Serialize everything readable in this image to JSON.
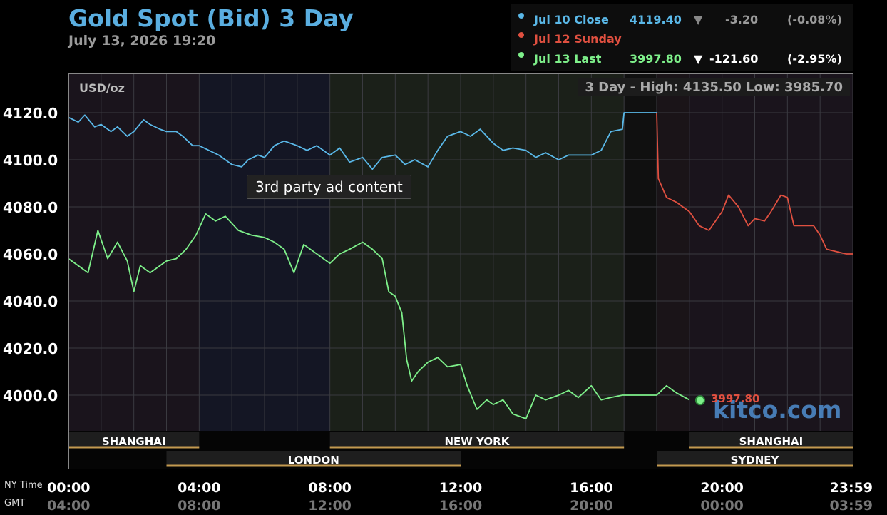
{
  "header": {
    "title": "Gold Spot (Bid) 3 Day",
    "datetime": "July 13, 2026 19:20"
  },
  "legend": [
    {
      "label": "Jul 10 Close",
      "value": "4119.40",
      "arrow": "▼",
      "change": "-3.20",
      "pct": "(-0.08%)",
      "color": "#5ab8e8",
      "value_color": "#5ab8e8",
      "change_color": "#9a9a9a"
    },
    {
      "label": "Jul 12 Sunday",
      "value": "",
      "arrow": "",
      "change": "",
      "pct": "",
      "color": "#e05040",
      "value_color": "#e05040",
      "change_color": "#e05040"
    },
    {
      "label": "Jul 13 Last",
      "value": "3997.80",
      "arrow": "▼",
      "change": "-121.60",
      "pct": "(-2.95%)",
      "color": "#7ef08a",
      "value_color": "#7ef08a",
      "change_color": "#ffffff"
    }
  ],
  "units": "USD/oz",
  "high_low": "3 Day - High: 4135.50  Low: 3985.70",
  "ad_label": "3rd party ad content",
  "last_price_label": "3997.80",
  "watermark": "kitco.com",
  "tz_labels": {
    "ny": "NY Time",
    "gmt": "GMT"
  },
  "chart_data": {
    "type": "line",
    "x_unit": "hours (NY Time)",
    "ylim": [
      3985,
      4135
    ],
    "y_ticks": [
      4120.0,
      4100.0,
      4080.0,
      4060.0,
      4040.0,
      4020.0,
      4000.0
    ],
    "y_tick_labels": [
      "4120.0",
      "4100.0",
      "4080.0",
      "4060.0",
      "4040.0",
      "4020.0",
      "4000.0"
    ],
    "x_ticks_ny": [
      "00:00",
      "04:00",
      "08:00",
      "12:00",
      "16:00",
      "20:00",
      "23:59"
    ],
    "x_ticks_gmt": [
      "04:00",
      "08:00",
      "12:00",
      "16:00",
      "20:00",
      "00:00",
      "03:59"
    ],
    "x_tick_hours": [
      0,
      4,
      8,
      12,
      16,
      20,
      24
    ],
    "grid": true,
    "sessions_top": [
      {
        "name": "SHANGHAI",
        "start": 0,
        "end": 4
      },
      {
        "name": "NEW YORK",
        "start": 8,
        "end": 17
      },
      {
        "name": "SHANGHAI",
        "start": 19,
        "end": 24
      }
    ],
    "sessions_bottom": [
      {
        "name": "LONDON",
        "start": 3,
        "end": 12
      },
      {
        "name": "SYDNEY",
        "start": 18,
        "end": 24
      }
    ],
    "series": [
      {
        "name": "Jul 10 Close",
        "color": "#5ab8e8",
        "x": [
          0,
          0.3,
          0.5,
          0.8,
          1,
          1.3,
          1.5,
          1.8,
          2,
          2.3,
          2.5,
          2.8,
          3,
          3.3,
          3.5,
          3.8,
          4,
          4.3,
          4.6,
          5,
          5.3,
          5.5,
          5.8,
          6,
          6.3,
          6.6,
          7,
          7.3,
          7.6,
          8,
          8.3,
          8.6,
          9,
          9.3,
          9.6,
          10,
          10.3,
          10.6,
          11,
          11.3,
          11.6,
          12,
          12.3,
          12.6,
          13,
          13.3,
          13.6,
          14,
          14.3,
          14.6,
          15,
          15.3,
          15.6,
          16,
          16.3,
          16.6,
          16.95,
          17,
          18
        ],
        "y": [
          4118,
          4116,
          4119,
          4114,
          4115,
          4112,
          4114,
          4110,
          4112,
          4117,
          4115,
          4113,
          4112,
          4112,
          4110,
          4106,
          4106,
          4104,
          4102,
          4098,
          4097,
          4100,
          4102,
          4101,
          4106,
          4108,
          4106,
          4104,
          4106,
          4102,
          4105,
          4099,
          4101,
          4096,
          4101,
          4102,
          4098,
          4100,
          4097,
          4104,
          4110,
          4112,
          4110,
          4113,
          4107,
          4104,
          4105,
          4104,
          4101,
          4103,
          4100,
          4102,
          4102,
          4102,
          4104,
          4112,
          4113,
          4120,
          4120
        ]
      },
      {
        "name": "Jul 12 Sunday",
        "color": "#e05040",
        "x": [
          18,
          18.05,
          18.3,
          18.6,
          19,
          19.3,
          19.6,
          20,
          20.2,
          20.5,
          20.8,
          21,
          21.3,
          21.5,
          21.8,
          22,
          22.2,
          22.5,
          22.8,
          23,
          23.2,
          23.5,
          23.8,
          24
        ],
        "y": [
          4120,
          4092,
          4084,
          4082,
          4078,
          4072,
          4070,
          4078,
          4085,
          4080,
          4072,
          4075,
          4074,
          4078,
          4085,
          4084,
          4072,
          4072,
          4072,
          4068,
          4062,
          4061,
          4060,
          4060
        ]
      },
      {
        "name": "Jul 13 Last",
        "color": "#7ef08a",
        "x": [
          0,
          0.3,
          0.6,
          0.9,
          1.2,
          1.5,
          1.8,
          2,
          2.2,
          2.5,
          2.8,
          3,
          3.3,
          3.6,
          3.9,
          4.2,
          4.5,
          4.8,
          5.2,
          5.6,
          6,
          6.3,
          6.6,
          6.9,
          7.2,
          7.5,
          7.8,
          8,
          8.3,
          8.6,
          9,
          9.3,
          9.6,
          9.8,
          10,
          10.2,
          10.35,
          10.5,
          10.7,
          11,
          11.3,
          11.6,
          12,
          12.2,
          12.5,
          12.8,
          13,
          13.3,
          13.6,
          14,
          14.3,
          14.6,
          15,
          15.3,
          15.6,
          16,
          16.3,
          16.6,
          16.95,
          17,
          18,
          18.3,
          18.6,
          19
        ],
        "y": [
          4058,
          4055,
          4052,
          4070,
          4058,
          4065,
          4057,
          4044,
          4055,
          4052,
          4055,
          4057,
          4058,
          4062,
          4068,
          4077,
          4074,
          4076,
          4070,
          4068,
          4067,
          4065,
          4062,
          4052,
          4064,
          4061,
          4058,
          4056,
          4060,
          4062,
          4065,
          4062,
          4058,
          4044,
          4042,
          4035,
          4015,
          4006,
          4010,
          4014,
          4016,
          4012,
          4013,
          4004,
          3994,
          3998,
          3996,
          3998,
          3992,
          3990,
          4000,
          3998,
          4000,
          4002,
          3999,
          4004,
          3998,
          3999,
          4000,
          4000,
          4000,
          4004,
          4001,
          3998
        ]
      }
    ],
    "last_point": {
      "x": 19.33,
      "y": 3997.8
    }
  }
}
